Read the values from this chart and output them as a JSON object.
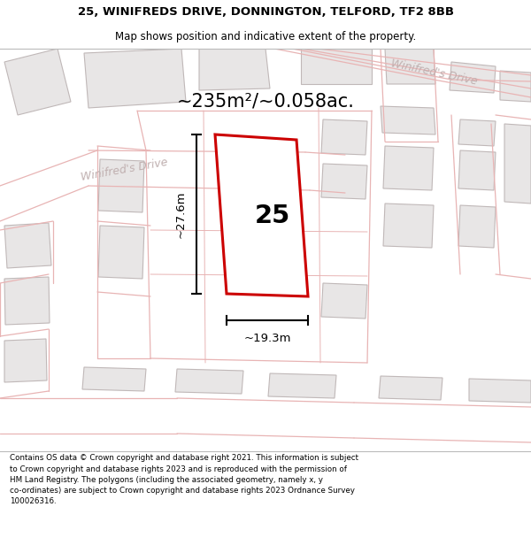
{
  "title_line1": "25, WINIFREDS DRIVE, DONNINGTON, TELFORD, TF2 8BB",
  "title_line2": "Map shows position and indicative extent of the property.",
  "area_label": "~235m²/~0.058ac.",
  "plot_number": "25",
  "width_label": "~19.3m",
  "height_label": "~27.6m",
  "street_label_left": "Winifred's Drive",
  "street_label_right": "Winifred's Drive",
  "footer_lines": [
    "Contains OS data © Crown copyright and database right 2021. This information is subject",
    "to Crown copyright and database rights 2023 and is reproduced with the permission of",
    "HM Land Registry. The polygons (including the associated geometry, namely x, y",
    "co-ordinates) are subject to Crown copyright and database rights 2023 Ordnance Survey",
    "100026316."
  ],
  "bg_color": "#ffffff",
  "map_bg": "#ffffff",
  "bld_fill": "#e8e6e6",
  "bld_edge": "#c0b8b8",
  "road_line_color": "#e8b4b4",
  "plot_fill": "#ffffff",
  "plot_edge": "#cc0000",
  "street_label_color": "#c0b0b0",
  "dim_color": "#000000",
  "area_fontsize": 15,
  "title_fontsize1": 9.5,
  "title_fontsize2": 8.5,
  "footer_fontsize": 6.3
}
